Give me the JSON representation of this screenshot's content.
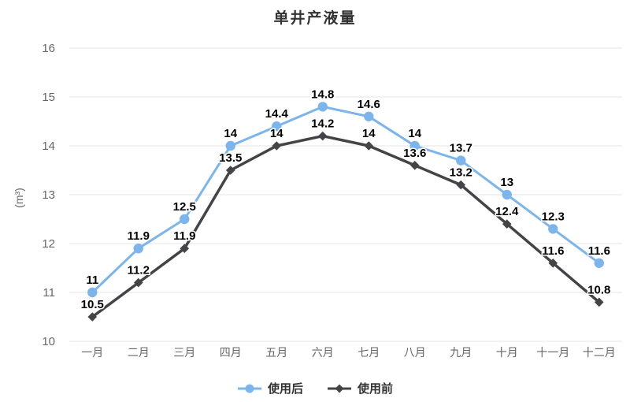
{
  "chart_data": {
    "type": "line",
    "title": "单井产液量",
    "xlabel": "",
    "ylabel": "(m³)",
    "categories": [
      "一月",
      "二月",
      "三月",
      "四月",
      "五月",
      "六月",
      "七月",
      "八月",
      "九月",
      "十月",
      "十一月",
      "十二月"
    ],
    "series": [
      {
        "name": "使用后",
        "marker": "circle",
        "color": "#7cb5ec",
        "values": [
          11,
          11.9,
          12.5,
          14,
          14.4,
          14.8,
          14.6,
          14,
          13.7,
          13,
          12.3,
          11.6
        ]
      },
      {
        "name": "使用前",
        "marker": "diamond",
        "color": "#434348",
        "values": [
          10.5,
          11.2,
          11.9,
          13.5,
          14,
          14.2,
          14,
          13.6,
          13.2,
          12.4,
          11.6,
          10.8
        ]
      }
    ],
    "ylim": [
      10,
      16
    ],
    "ytick_step": 1,
    "grid": true,
    "data_labels": true,
    "legend_position": "bottom",
    "colors": {
      "grid": "#e6e6e6",
      "axis_text": "#666666",
      "data_label": "#000000",
      "title": "#333333",
      "background": "#ffffff"
    }
  }
}
